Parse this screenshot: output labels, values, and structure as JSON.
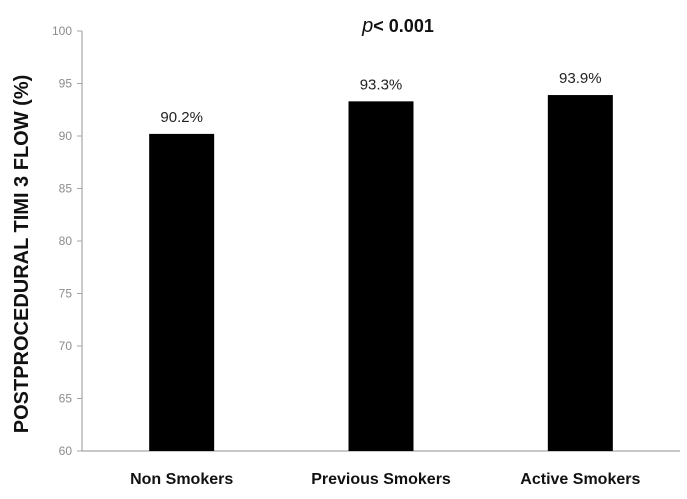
{
  "chart_data": {
    "type": "bar",
    "title": {
      "italic_part": "p",
      "rest": "< 0.001"
    },
    "ylabel": "POSTPROCEDURAL TIMI 3 FLOW (%)",
    "xlabel": "",
    "categories": [
      "Non Smokers",
      "Previous Smokers",
      "Active Smokers"
    ],
    "values": [
      90.2,
      93.3,
      93.9
    ],
    "data_labels": [
      "90.2%",
      "93.3%",
      "93.9%"
    ],
    "ylim": [
      60,
      100
    ],
    "yticks": [
      "60",
      "65",
      "70",
      "75",
      "80",
      "85",
      "90",
      "95",
      "100"
    ],
    "grid": false,
    "legend": "none",
    "colors": {
      "bar": "#000000",
      "axis": "#a6a6a6"
    }
  }
}
